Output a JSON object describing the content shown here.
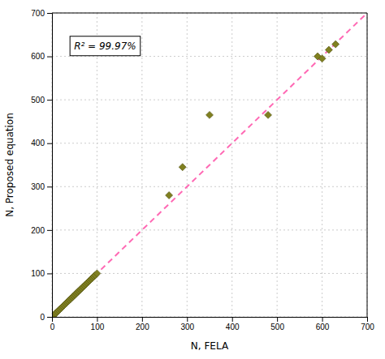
{
  "chart_data": {
    "type": "scatter",
    "xlabel": "N, FELA",
    "ylabel": "N, Proposed equation",
    "annotation": "R² = 99.97%",
    "xlim": [
      0,
      700
    ],
    "ylim": [
      0,
      700
    ],
    "xticks": [
      0,
      100,
      200,
      300,
      400,
      500,
      600,
      700
    ],
    "yticks": [
      0,
      100,
      200,
      300,
      400,
      500,
      600,
      700
    ],
    "grid": true,
    "series": [
      {
        "type": "line",
        "line_style": "dashed",
        "color": "#FF69B4",
        "x": [
          0,
          700
        ],
        "values": [
          0,
          700
        ]
      },
      {
        "type": "scatter",
        "marker": "diamond",
        "color": "#808020",
        "x": [
          2,
          5,
          7,
          9,
          12,
          15,
          18,
          21,
          24,
          27,
          30,
          33,
          36,
          39,
          42,
          45,
          48,
          51,
          54,
          57,
          60,
          63,
          66,
          69,
          72,
          75,
          78,
          81,
          84,
          87,
          90,
          93,
          96,
          100,
          260,
          290,
          350,
          480,
          590,
          600,
          615,
          630
        ],
        "values": [
          2,
          5,
          7,
          9,
          12,
          15,
          18,
          21,
          24,
          27,
          30,
          33,
          36,
          39,
          42,
          45,
          48,
          51,
          54,
          57,
          60,
          63,
          66,
          69,
          72,
          75,
          78,
          81,
          84,
          87,
          90,
          93,
          96,
          100,
          280,
          345,
          465,
          465,
          600,
          595,
          615,
          628
        ]
      }
    ]
  }
}
